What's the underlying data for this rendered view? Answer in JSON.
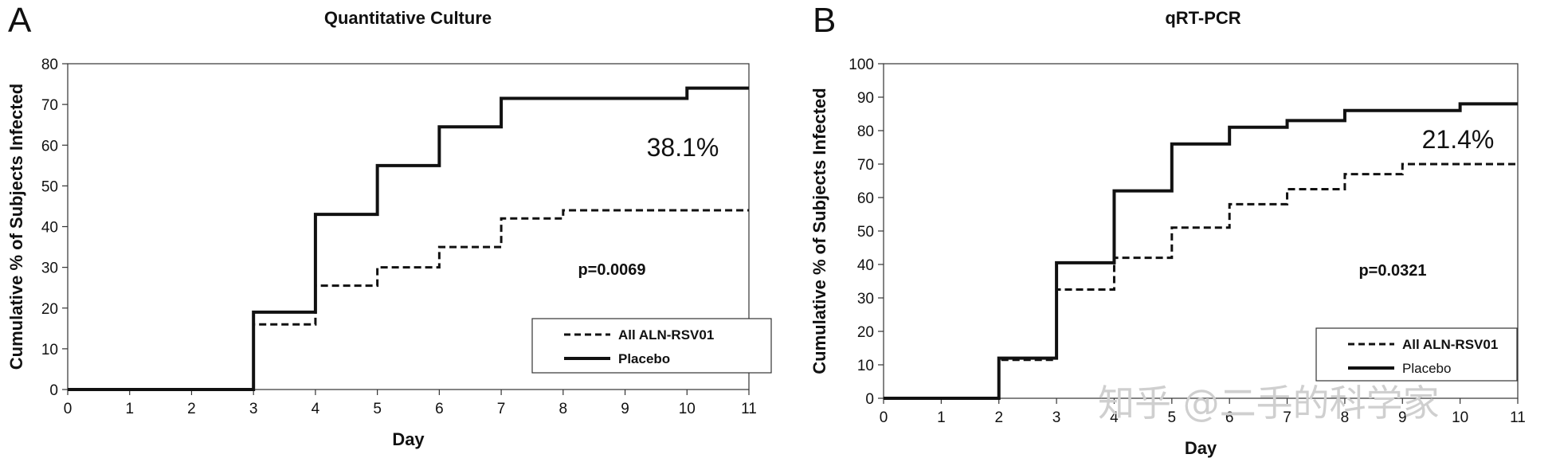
{
  "figure": {
    "watermark": "知乎 @二手的科学家"
  },
  "chart_data": [
    {
      "type": "line",
      "panel_letter": "A",
      "title": "Quantitative Culture",
      "xlabel": "Day",
      "ylabel": "Cumulative % of Subjects Infected",
      "xlim": [
        0,
        11
      ],
      "ylim": [
        0,
        80
      ],
      "x_ticks": [
        0,
        1,
        2,
        3,
        4,
        5,
        6,
        7,
        8,
        9,
        10,
        11
      ],
      "y_ticks": [
        0,
        10,
        20,
        30,
        40,
        50,
        60,
        70,
        80
      ],
      "grid": false,
      "legend_position": "bottom-right",
      "series": [
        {
          "name": "All ALN-RSV01",
          "style": "dashed",
          "x": [
            0,
            3,
            4,
            5,
            6,
            7,
            8,
            11
          ],
          "y": [
            0,
            16,
            25.5,
            30,
            35,
            42,
            44,
            44
          ]
        },
        {
          "name": "Placebo",
          "style": "solid",
          "x": [
            0,
            3,
            4,
            5,
            6,
            7,
            10,
            11
          ],
          "y": [
            0,
            19,
            43,
            55,
            64.5,
            71.5,
            74,
            74
          ]
        }
      ],
      "annotations": [
        {
          "text": "38.1%",
          "kind": "percent"
        },
        {
          "text": "p=0.0069",
          "kind": "pvalue"
        }
      ]
    },
    {
      "type": "line",
      "panel_letter": "B",
      "title": "qRT-PCR",
      "xlabel": "Day",
      "ylabel": "Cumulative % of Subjects Infected",
      "xlim": [
        0,
        11
      ],
      "ylim": [
        0,
        100
      ],
      "x_ticks": [
        0,
        1,
        2,
        3,
        4,
        5,
        6,
        7,
        8,
        9,
        10,
        11
      ],
      "y_ticks": [
        0,
        10,
        20,
        30,
        40,
        50,
        60,
        70,
        80,
        90,
        100
      ],
      "grid": false,
      "legend_position": "bottom-right",
      "series": [
        {
          "name": "All ALN-RSV01",
          "style": "dashed",
          "x": [
            0,
            2,
            3,
            4,
            5,
            6,
            7,
            8,
            9,
            11
          ],
          "y": [
            0,
            11.5,
            32.5,
            42,
            51,
            58,
            62.5,
            67,
            70,
            70
          ]
        },
        {
          "name": "Placebo",
          "style": "solid",
          "x": [
            0,
            2,
            3,
            4,
            5,
            6,
            7,
            8,
            10,
            11
          ],
          "y": [
            0,
            12,
            40.5,
            62,
            76,
            81,
            83,
            86,
            88,
            88
          ]
        }
      ],
      "annotations": [
        {
          "text": "21.4%",
          "kind": "percent"
        },
        {
          "text": "p=0.0321",
          "kind": "pvalue"
        }
      ]
    }
  ]
}
